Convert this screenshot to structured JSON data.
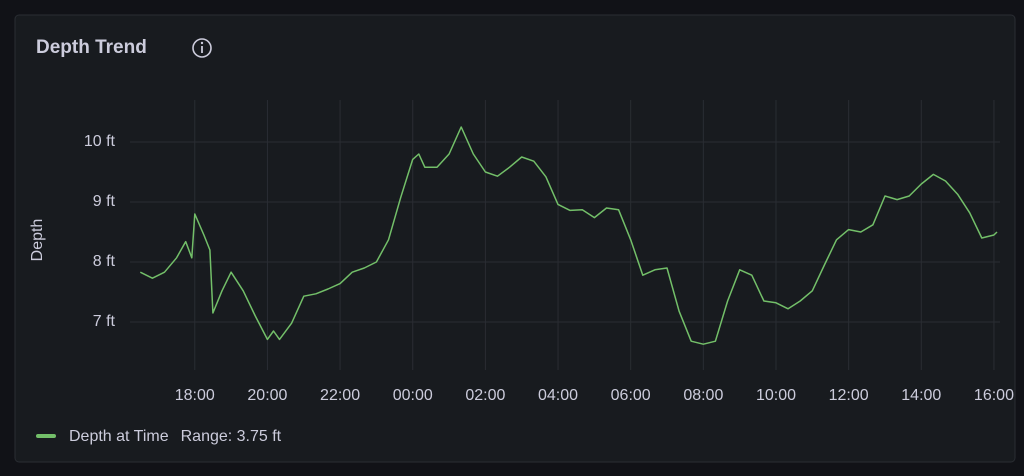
{
  "chart_data": {
    "type": "line",
    "title": "Depth Trend",
    "ylabel": "Depth",
    "x": [
      "16:30",
      "16:50",
      "17:10",
      "17:30",
      "17:45",
      "17:55",
      "18:00",
      "18:15",
      "18:25",
      "18:30",
      "18:45",
      "19:00",
      "19:20",
      "19:40",
      "20:00",
      "20:10",
      "20:20",
      "20:40",
      "21:00",
      "21:20",
      "21:40",
      "22:00",
      "22:20",
      "22:40",
      "23:00",
      "23:20",
      "23:40",
      "00:00",
      "00:10",
      "00:20",
      "00:40",
      "01:00",
      "01:20",
      "01:40",
      "02:00",
      "02:20",
      "02:40",
      "03:00",
      "03:20",
      "03:40",
      "04:00",
      "04:20",
      "04:40",
      "05:00",
      "05:20",
      "05:40",
      "06:00",
      "06:20",
      "06:40",
      "07:00",
      "07:20",
      "07:40",
      "08:00",
      "08:20",
      "08:40",
      "09:00",
      "09:20",
      "09:40",
      "10:00",
      "10:20",
      "10:40",
      "11:00",
      "11:20",
      "11:40",
      "12:00",
      "12:20",
      "12:40",
      "13:00",
      "13:20",
      "13:40",
      "14:00",
      "14:20",
      "14:40",
      "15:00",
      "15:20",
      "15:40",
      "16:00",
      "16:05"
    ],
    "series": [
      {
        "name": "Depth at Time",
        "color": "#73bf69",
        "values": [
          7.83,
          7.73,
          7.83,
          8.07,
          8.34,
          8.07,
          8.8,
          8.45,
          8.2,
          7.15,
          7.52,
          7.83,
          7.52,
          7.1,
          6.71,
          6.85,
          6.71,
          6.98,
          7.43,
          7.47,
          7.55,
          7.64,
          7.83,
          7.9,
          8.0,
          8.37,
          9.07,
          9.71,
          9.8,
          9.58,
          9.58,
          9.8,
          10.25,
          9.8,
          9.5,
          9.43,
          9.58,
          9.75,
          9.68,
          9.42,
          8.96,
          8.86,
          8.87,
          8.74,
          8.9,
          8.87,
          8.37,
          7.78,
          7.87,
          7.9,
          7.18,
          6.68,
          6.63,
          6.68,
          7.35,
          7.87,
          7.78,
          7.35,
          7.32,
          7.22,
          7.35,
          7.52,
          7.95,
          8.37,
          8.54,
          8.5,
          8.62,
          9.1,
          9.04,
          9.1,
          9.3,
          9.46,
          9.35,
          9.13,
          8.82,
          8.4,
          8.45,
          8.5
        ]
      }
    ],
    "legend_extra": "Range: 3.75 ft",
    "xlim": [
      "16:13",
      "16:10"
    ],
    "xticks": [
      "18:00",
      "20:00",
      "22:00",
      "00:00",
      "02:00",
      "04:00",
      "06:00",
      "08:00",
      "10:00",
      "12:00",
      "14:00",
      "16:00"
    ],
    "ylim": [
      6.2,
      10.7
    ],
    "yticks": [
      {
        "value": 7,
        "label": "7 ft"
      },
      {
        "value": 8,
        "label": "8 ft"
      },
      {
        "value": 9,
        "label": "9 ft"
      },
      {
        "value": 10,
        "label": "10 ft"
      }
    ],
    "grid": true,
    "legend": "bottom-left"
  }
}
